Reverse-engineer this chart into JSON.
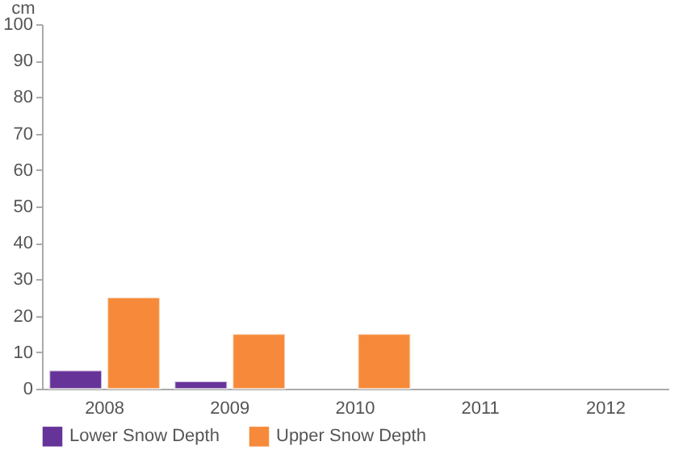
{
  "chart_data": {
    "type": "bar",
    "ylabel": "cm",
    "categories": [
      "2008",
      "2009",
      "2010",
      "2011",
      "2012"
    ],
    "series": [
      {
        "name": "Lower Snow Depth",
        "color": "#663399",
        "values": [
          5,
          2,
          null,
          null,
          null
        ]
      },
      {
        "name": "Upper Snow Depth",
        "color": "#f68a3a",
        "values": [
          25,
          15,
          15,
          null,
          null
        ]
      }
    ],
    "ylim": [
      0,
      100
    ],
    "yticks": [
      0,
      10,
      20,
      30,
      40,
      50,
      60,
      70,
      80,
      90,
      100
    ],
    "grid": false,
    "legend": "bottom"
  }
}
